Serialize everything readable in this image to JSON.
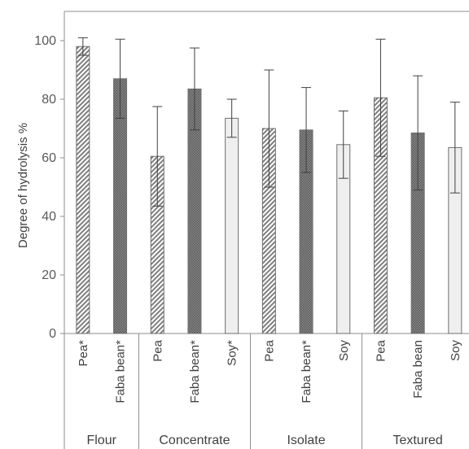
{
  "chart_data": {
    "type": "bar",
    "ylabel": "Degree of hydrolysis %",
    "ylim": [
      0,
      100
    ],
    "yticks": [
      "0",
      "20",
      "40",
      "60",
      "80",
      "100"
    ],
    "grid": false,
    "groups": [
      {
        "name": "Flour",
        "bars": [
          {
            "label": "Pea*",
            "material": "pea",
            "value": 98,
            "error": 3
          },
          {
            "label": "Faba bean*",
            "material": "faba",
            "value": 87,
            "error": 13.5
          }
        ]
      },
      {
        "name": "Concentrate",
        "bars": [
          {
            "label": "Pea",
            "material": "pea",
            "value": 60.5,
            "error": 17
          },
          {
            "label": "Faba bean*",
            "material": "faba",
            "value": 83.5,
            "error": 14
          },
          {
            "label": "Soy*",
            "material": "soy",
            "value": 73.5,
            "error": 6.5
          }
        ]
      },
      {
        "name": "Isolate",
        "bars": [
          {
            "label": "Pea",
            "material": "pea",
            "value": 70,
            "error": 20
          },
          {
            "label": "Faba bean*",
            "material": "faba",
            "value": 69.5,
            "error": 14.5
          },
          {
            "label": "Soy",
            "material": "soy",
            "value": 64.5,
            "error": 11.5
          }
        ]
      },
      {
        "name": "Textured",
        "bars": [
          {
            "label": "Pea",
            "material": "pea",
            "value": 80.5,
            "error": 20
          },
          {
            "label": "Faba bean",
            "material": "faba",
            "value": 68.5,
            "error": 19.5
          },
          {
            "label": "Soy",
            "material": "soy",
            "value": 63.5,
            "error": 15.5
          }
        ]
      }
    ],
    "colors": {
      "axis": "#8c8c8c",
      "pea_stripe": "#7f7f7f",
      "faba_fill": "#595959",
      "soy_fill": "#efefef",
      "bar_edge": "#6e6e6e",
      "error_bar": "#404040"
    }
  }
}
